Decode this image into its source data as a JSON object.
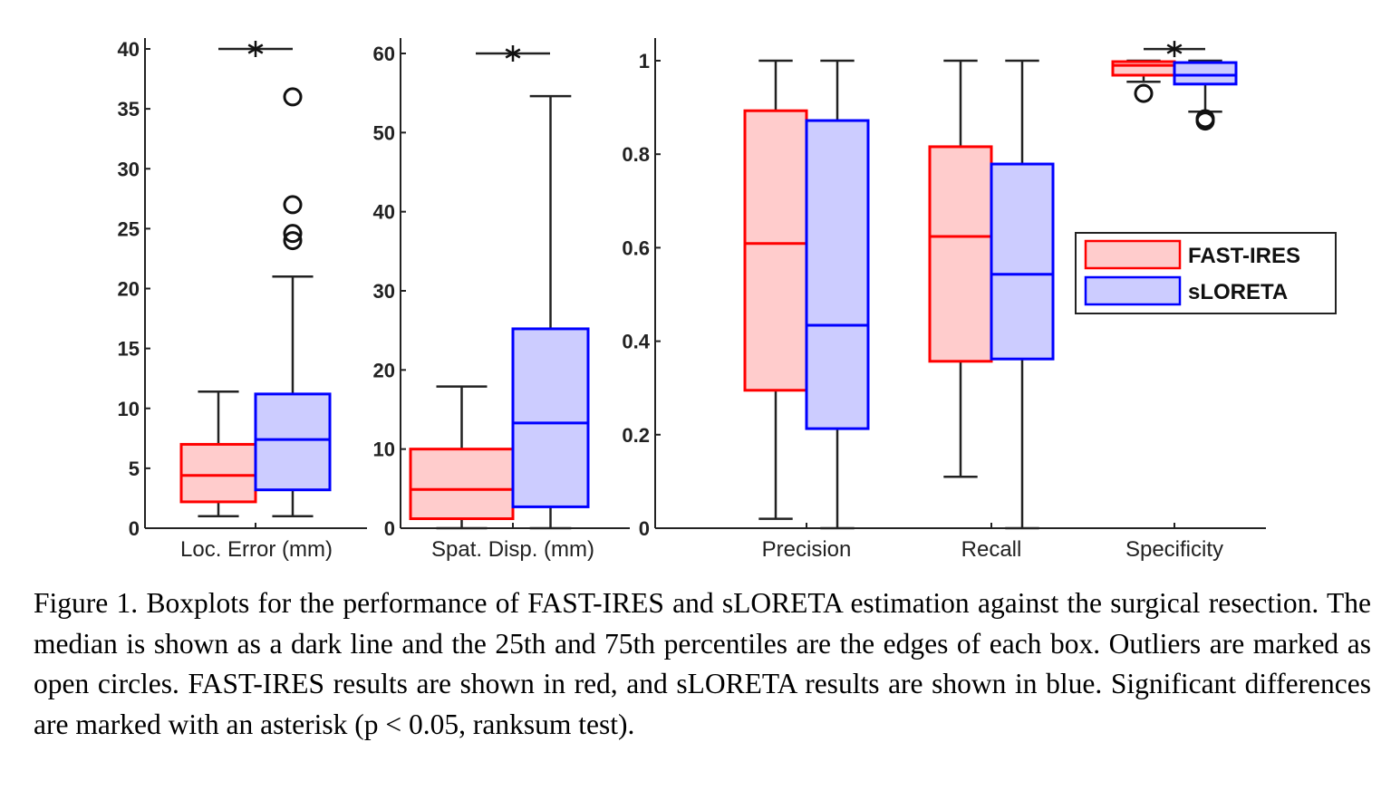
{
  "caption": "Figure 1. Boxplots for the performance of FAST-IRES and sLORETA estimation against the surgical resection. The median is shown as a dark line and the 25th and 75th percentiles are the edges of each box. Outliers are marked as open circles. FAST-IRES results are shown in red, and sLORETA results are shown in blue. Significant differences are marked with an asterisk (p < 0.05, ranksum test).",
  "chart_data": [
    {
      "type": "boxplot",
      "id": "loc-error",
      "title": "",
      "xlabel": "Loc. Error (mm)",
      "ylabel": "",
      "ylim": [
        0,
        40
      ],
      "yticks": [
        0,
        5,
        10,
        15,
        20,
        25,
        30,
        35,
        40
      ],
      "ytick_labels": [
        "0",
        "5",
        "10",
        "15",
        "20",
        "25",
        "30",
        "35",
        "40"
      ],
      "groups": [
        {
          "category": "Loc. Error (mm)",
          "significant": true,
          "significance_y": 40,
          "boxes": [
            {
              "series": "FAST-IRES",
              "whisker_low": 1.0,
              "q1": 2.2,
              "median": 4.4,
              "q3": 7.0,
              "whisker_high": 11.4,
              "outliers": []
            },
            {
              "series": "sLORETA",
              "whisker_low": 1.0,
              "q1": 3.2,
              "median": 7.4,
              "q3": 11.2,
              "whisker_high": 21.0,
              "outliers": [
                36.0,
                27.0,
                24.6,
                24.0
              ]
            }
          ]
        }
      ]
    },
    {
      "type": "boxplot",
      "id": "spat-disp",
      "title": "",
      "xlabel": "Spat. Disp. (mm)",
      "ylabel": "",
      "ylim": [
        0,
        60
      ],
      "yticks": [
        0,
        10,
        20,
        30,
        40,
        50,
        60
      ],
      "ytick_labels": [
        "0",
        "10",
        "20",
        "30",
        "40",
        "50",
        "60"
      ],
      "groups": [
        {
          "category": "Spat. Disp. (mm)",
          "significant": true,
          "significance_y": 60,
          "boxes": [
            {
              "series": "FAST-IRES",
              "whisker_low": 0.0,
              "q1": 1.2,
              "median": 4.9,
              "q3": 10.0,
              "whisker_high": 17.9,
              "outliers": []
            },
            {
              "series": "sLORETA",
              "whisker_low": 0.0,
              "q1": 2.7,
              "median": 13.3,
              "q3": 25.2,
              "whisker_high": 54.6,
              "outliers": []
            }
          ]
        }
      ]
    },
    {
      "type": "boxplot",
      "id": "metrics",
      "title": "",
      "xlabel": "",
      "ylabel": "",
      "ylim": [
        0,
        1
      ],
      "yticks": [
        0,
        0.2,
        0.4,
        0.6,
        0.8,
        1
      ],
      "ytick_labels": [
        "0",
        "0.2",
        "0.4",
        "0.6",
        "0.8",
        "1"
      ],
      "categories": [
        "Precision",
        "Recall",
        "Specificity"
      ],
      "legend": {
        "position": "right-center",
        "entries": [
          "FAST-IRES",
          "sLORETA"
        ]
      },
      "groups": [
        {
          "category": "Precision",
          "significant": false,
          "boxes": [
            {
              "series": "FAST-IRES",
              "whisker_low": 0.02,
              "q1": 0.295,
              "median": 0.609,
              "q3": 0.893,
              "whisker_high": 1.0,
              "outliers": []
            },
            {
              "series": "sLORETA",
              "whisker_low": 0.0,
              "q1": 0.213,
              "median": 0.434,
              "q3": 0.872,
              "whisker_high": 1.0,
              "outliers": []
            }
          ]
        },
        {
          "category": "Recall",
          "significant": false,
          "boxes": [
            {
              "series": "FAST-IRES",
              "whisker_low": 0.11,
              "q1": 0.357,
              "median": 0.624,
              "q3": 0.816,
              "whisker_high": 1.0,
              "outliers": []
            },
            {
              "series": "sLORETA",
              "whisker_low": 0.0,
              "q1": 0.362,
              "median": 0.543,
              "q3": 0.779,
              "whisker_high": 1.0,
              "outliers": []
            }
          ]
        },
        {
          "category": "Specificity",
          "significant": true,
          "significance_y": 1.025,
          "boxes": [
            {
              "series": "FAST-IRES",
              "whisker_low": 0.955,
              "q1": 0.969,
              "median": 0.99,
              "q3": 0.998,
              "whisker_high": 1.0,
              "outliers": [
                0.93
              ]
            },
            {
              "series": "sLORETA",
              "whisker_low": 0.891,
              "q1": 0.95,
              "median": 0.969,
              "q3": 0.996,
              "whisker_high": 1.0,
              "outliers": [
                0.876,
                0.871
              ]
            }
          ]
        }
      ]
    }
  ],
  "series_styles": {
    "FAST-IRES": {
      "edge": "#ff0000",
      "fill": "#ffcccc"
    },
    "sLORETA": {
      "edge": "#0000ff",
      "fill": "#ccccff"
    }
  },
  "legend_labels": [
    "FAST-IRES",
    "sLORETA"
  ]
}
